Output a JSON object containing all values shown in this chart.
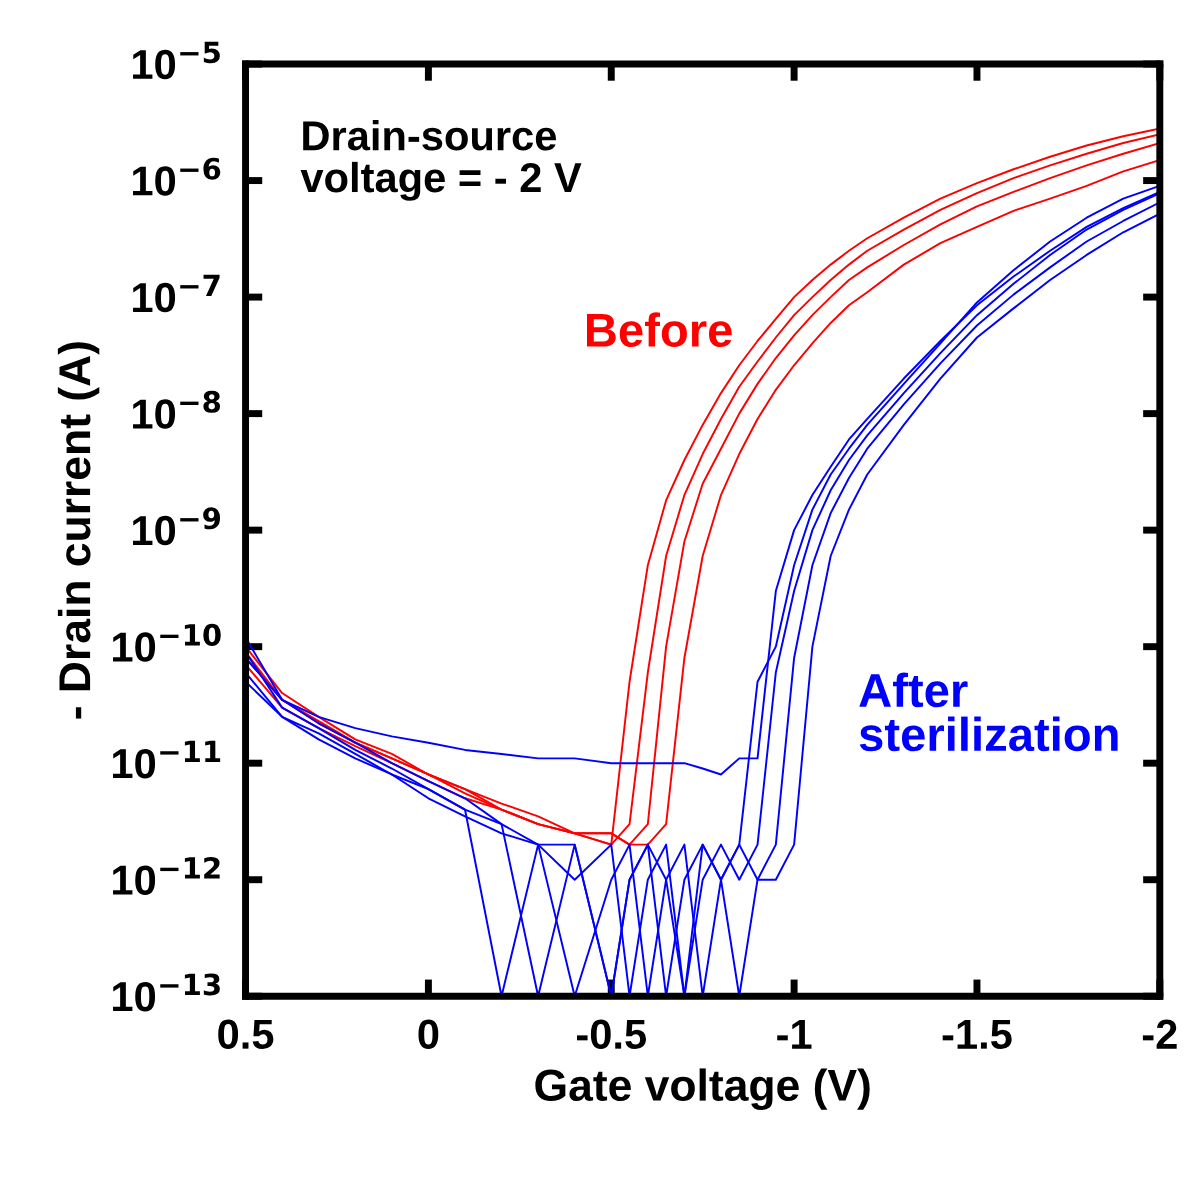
{
  "chart_data": {
    "type": "line",
    "xlabel": "Gate voltage (V)",
    "ylabel": "- Drain current (A)",
    "log": "y",
    "xlim": [
      0.5,
      -2
    ],
    "ylim": [
      1e-13,
      1e-05
    ],
    "xticks": [
      0.5,
      0,
      {
        "value": -0.5,
        "label": "-0.5"
      },
      {
        "value": -1,
        "label": "-1"
      },
      {
        "value": -1.5,
        "label": "-1.5"
      },
      {
        "value": -2,
        "label": "-2"
      }
    ],
    "yticks": [
      {
        "value": 1e-13,
        "label": "10$^{−13}$"
      },
      {
        "value": 1e-12,
        "label": "10$^{−12}$"
      },
      {
        "value": 1e-11,
        "label": "10$^{−11}$"
      },
      {
        "value": 1e-10,
        "label": "10$^{−10}$"
      },
      {
        "value": 1e-09,
        "label": "10$^{−9}$"
      },
      {
        "value": 1e-08,
        "label": "10$^{−8}$"
      },
      {
        "value": 1e-07,
        "label": "10$^{−7}$"
      },
      {
        "value": 1e-06,
        "label": "10$^{−6}$"
      },
      {
        "value": 1e-05,
        "label": "10$^{−5}$"
      }
    ],
    "grid": false,
    "legend": false,
    "marker": "none",
    "line_style": "solid",
    "annotations": [
      "Drain-source\nvoltage = - 2 V"
    ],
    "x": [
      0.5,
      0.4,
      0.3,
      0.2,
      0.1,
      0,
      -0.1,
      -0.2,
      -0.3,
      -0.4,
      -0.5,
      -0.55,
      -0.6,
      -0.65,
      -0.7,
      -0.75,
      -0.8,
      -0.85,
      -0.9,
      -0.95,
      -1.0,
      -1.05,
      -1.1,
      -1.15,
      -1.2,
      -1.3,
      -1.4,
      -1.5,
      -1.6,
      -1.7,
      -1.8,
      -1.9,
      -2.0
    ],
    "series": [
      {
        "name": "Before",
        "color": "#ff0000",
        "values": [
          1e-10,
          4e-11,
          2.5e-11,
          1.6e-11,
          1.2e-11,
          8e-12,
          6e-12,
          4.5e-12,
          3.5e-12,
          2.5e-12,
          2e-12,
          5e-11,
          5e-10,
          1.8e-09,
          4e-09,
          8e-09,
          1.5e-08,
          2.6e-08,
          4.2e-08,
          6.5e-08,
          1e-07,
          1.4e-07,
          1.9e-07,
          2.5e-07,
          3.2e-07,
          4.8e-07,
          7e-07,
          9.5e-07,
          1.25e-06,
          1.6e-06,
          2e-06,
          2.4e-06,
          2.8e-06
        ]
      },
      {
        "color": "#ff0000",
        "values": [
          8e-11,
          3.5e-11,
          2.2e-11,
          1.5e-11,
          1.1e-11,
          8e-12,
          5.5e-12,
          4e-12,
          3e-12,
          2.5e-12,
          2e-12,
          3e-12,
          6e-11,
          6e-10,
          2e-09,
          4.5e-09,
          9e-09,
          1.7e-08,
          2.8e-08,
          4.5e-08,
          7e-08,
          1e-07,
          1.4e-07,
          1.9e-07,
          2.5e-07,
          3.8e-07,
          5.6e-07,
          7.8e-07,
          1.05e-06,
          1.35e-06,
          1.7e-06,
          2.1e-06,
          2.5e-06
        ]
      },
      {
        "color": "#ff0000",
        "values": [
          9e-11,
          3.5e-11,
          2.3e-11,
          1.5e-11,
          1.1e-11,
          8e-12,
          6e-12,
          4e-12,
          3e-12,
          2.5e-12,
          2.5e-12,
          2e-12,
          3e-12,
          1e-10,
          8e-10,
          2.5e-09,
          5e-09,
          1e-08,
          1.8e-08,
          3e-08,
          4.7e-08,
          7e-08,
          1e-07,
          1.4e-07,
          1.8e-07,
          2.8e-07,
          4.2e-07,
          6e-07,
          8e-07,
          1.05e-06,
          1.35e-06,
          1.7e-06,
          2.1e-06
        ]
      },
      {
        "color": "#ff0000",
        "values": [
          7e-11,
          3e-11,
          2e-11,
          1.4e-11,
          1e-11,
          7e-12,
          5e-12,
          4e-12,
          3e-12,
          2.5e-12,
          2.5e-12,
          2e-12,
          2e-12,
          3e-12,
          8e-11,
          6e-10,
          2e-09,
          4.5e-09,
          9e-09,
          1.6e-08,
          2.6e-08,
          4e-08,
          6e-08,
          8.5e-08,
          1.1e-07,
          1.9e-07,
          2.9e-07,
          4e-07,
          5.5e-07,
          7e-07,
          9e-07,
          1.2e-06,
          1.5e-06
        ]
      },
      {
        "name": "After\nsterilization",
        "color": "#0000ff",
        "values": [
          1.2e-10,
          3.5e-11,
          2.2e-11,
          1.5e-11,
          1e-11,
          7e-12,
          5e-12,
          3e-12,
          1e-13,
          2e-12,
          1e-13,
          1e-12,
          2e-12,
          1e-13,
          1e-12,
          2e-12,
          1e-12,
          2e-12,
          5e-11,
          1e-10,
          5e-10,
          1.5e-09,
          3e-09,
          5e-09,
          8e-09,
          1.8e-08,
          4e-08,
          9e-08,
          1.7e-07,
          3e-07,
          4.8e-07,
          7e-07,
          9e-07
        ]
      },
      {
        "color": "#0000ff",
        "values": [
          9e-11,
          3e-11,
          2e-11,
          1.3e-11,
          9e-12,
          6e-12,
          4e-12,
          1e-13,
          2e-12,
          1e-12,
          2e-12,
          1e-13,
          1e-12,
          2e-12,
          1e-13,
          1e-12,
          2e-12,
          1e-12,
          2e-12,
          6e-11,
          3e-10,
          1e-09,
          2.2e-09,
          4e-09,
          6.5e-09,
          1.5e-08,
          3.3e-08,
          7e-08,
          1.3e-07,
          2.3e-07,
          3.8e-07,
          5.6e-07,
          7.8e-07
        ]
      },
      {
        "color": "#0000ff",
        "values": [
          6e-11,
          2.5e-11,
          1.8e-11,
          1.2e-11,
          8e-12,
          6e-12,
          4e-12,
          3e-12,
          2e-12,
          1e-13,
          1e-12,
          2e-12,
          1e-13,
          1e-12,
          2e-12,
          1e-13,
          1e-12,
          2e-12,
          1e-12,
          2e-12,
          8e-11,
          5e-10,
          1.4e-09,
          2.8e-09,
          5e-09,
          1.2e-08,
          2.7e-08,
          5.7e-08,
          1.05e-07,
          1.8e-07,
          3e-07,
          4.5e-07,
          6.5e-07
        ]
      },
      {
        "color": "#0000ff",
        "values": [
          5e-11,
          2.5e-11,
          1.6e-11,
          1.1e-11,
          8e-12,
          5e-12,
          3.5e-12,
          2.5e-12,
          2e-12,
          2e-12,
          1e-13,
          1e-12,
          2e-12,
          1e-12,
          1e-13,
          2e-12,
          1e-12,
          1e-13,
          1e-12,
          1e-12,
          2e-12,
          1e-10,
          6e-10,
          1.5e-09,
          3e-09,
          8e-09,
          2e-08,
          4.5e-08,
          8e-08,
          1.4e-07,
          2.3e-07,
          3.6e-07,
          5.2e-07
        ]
      },
      {
        "color": "#0000ff",
        "values": [
          8e-11,
          3.5e-11,
          2.5e-11,
          2e-11,
          1.7e-11,
          1.5e-11,
          1.3e-11,
          1.2e-11,
          1.1e-11,
          1.1e-11,
          1e-11,
          1e-11,
          1e-11,
          1e-11,
          1e-11,
          9e-12,
          8e-12,
          1.1e-11,
          1.1e-11,
          3e-10,
          1e-09,
          2e-09,
          3.5e-09,
          6e-09,
          9e-09,
          2e-08,
          4.2e-08,
          8.5e-08,
          1.5e-07,
          2.5e-07,
          4e-07,
          5.8e-07,
          8e-07
        ]
      }
    ]
  }
}
